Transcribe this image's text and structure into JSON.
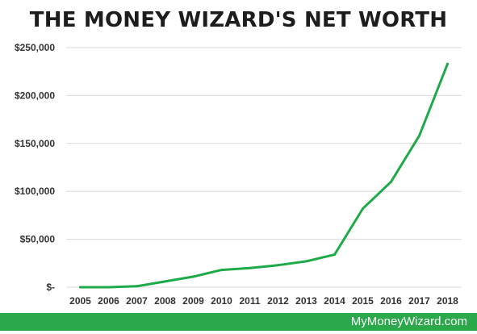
{
  "chart_data": {
    "type": "line",
    "title": "THE MONEY WIZARD'S NET WORTH",
    "xlabel": "",
    "ylabel": "",
    "categories": [
      "2005",
      "2006",
      "2007",
      "2008",
      "2009",
      "2010",
      "2011",
      "2012",
      "2013",
      "2014",
      "2015",
      "2016",
      "2017",
      "2018"
    ],
    "series": [
      {
        "values": [
          0,
          0,
          1000,
          6000,
          11000,
          18000,
          20000,
          23000,
          27000,
          34000,
          82000,
          110000,
          158000,
          233000
        ]
      }
    ],
    "ylim": [
      0,
      250000
    ],
    "y_ticks": [
      0,
      50000,
      100000,
      150000,
      200000,
      250000
    ],
    "y_tick_labels": [
      "$-",
      "$50,000",
      "$100,000",
      "$150,000",
      "$200,000",
      "$250,000"
    ],
    "grid": "horizontal",
    "legend": "none"
  },
  "colors": {
    "line": "#1faa4a",
    "grid": "#d9d9d9",
    "footer": "#2aa84a"
  },
  "footer": {
    "text": "MyMoneyWizard.com"
  }
}
